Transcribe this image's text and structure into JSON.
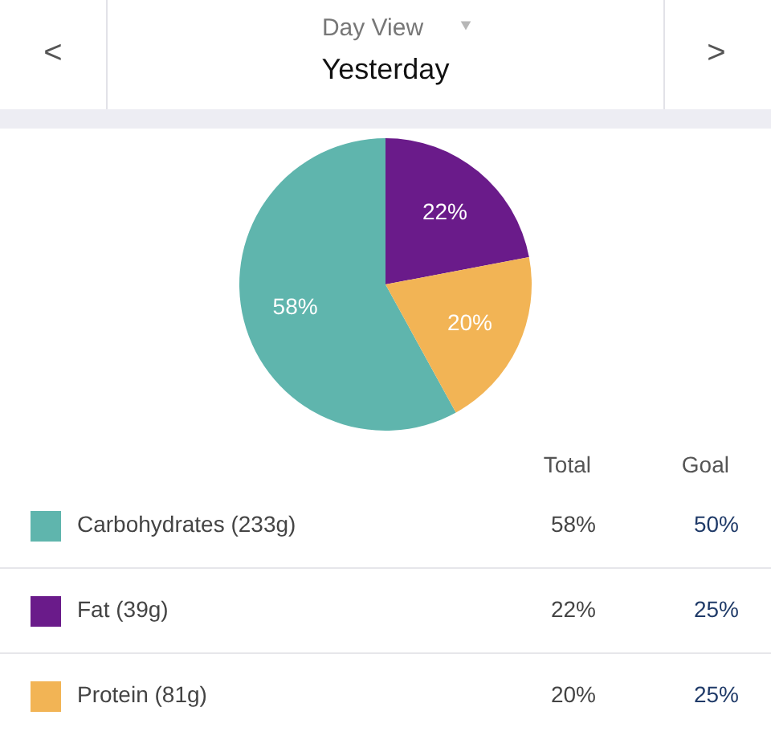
{
  "chart_data": {
    "type": "pie",
    "title": "Yesterday",
    "subtitle": "Day View",
    "categories": [
      "Carbohydrates (233g)",
      "Fat (39g)",
      "Protein (81g)"
    ],
    "values": [
      58,
      22,
      20
    ],
    "colors": [
      "#5fb5ad",
      "#6a1b8a",
      "#f2b455"
    ],
    "value_labels": [
      "58%",
      "22%",
      "20%"
    ],
    "legend": "bottom",
    "annotations": [
      "<",
      ">",
      "Total",
      "Goal",
      "50%",
      "25%",
      "25%"
    ]
  }
}
